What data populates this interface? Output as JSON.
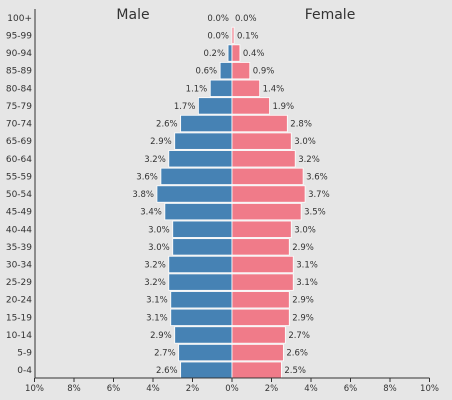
{
  "chart_data": {
    "type": "bar",
    "orientation": "horizontal-butterfly",
    "male_title": "Male",
    "female_title": "Female",
    "categories": [
      "100+",
      "95-99",
      "90-94",
      "85-89",
      "80-84",
      "75-79",
      "70-74",
      "65-69",
      "60-64",
      "55-59",
      "50-54",
      "45-49",
      "40-44",
      "35-39",
      "30-34",
      "25-29",
      "20-24",
      "15-19",
      "10-14",
      "5-9",
      "0-4"
    ],
    "series": [
      {
        "name": "Male",
        "color": "#4682b4",
        "values": [
          0.0,
          0.0,
          0.2,
          0.6,
          1.1,
          1.7,
          2.6,
          2.9,
          3.2,
          3.6,
          3.8,
          3.4,
          3.0,
          3.0,
          3.2,
          3.2,
          3.1,
          3.1,
          2.9,
          2.7,
          2.6
        ],
        "labels": [
          "0.0%",
          "0.0%",
          "0.2%",
          "0.6%",
          "1.1%",
          "1.7%",
          "2.6%",
          "2.9%",
          "3.2%",
          "3.6%",
          "3.8%",
          "3.4%",
          "3.0%",
          "3.0%",
          "3.2%",
          "3.2%",
          "3.1%",
          "3.1%",
          "2.9%",
          "2.7%",
          "2.6%"
        ]
      },
      {
        "name": "Female",
        "color": "#f07b89",
        "values": [
          0.0,
          0.1,
          0.4,
          0.9,
          1.4,
          1.9,
          2.8,
          3.0,
          3.2,
          3.6,
          3.7,
          3.5,
          3.0,
          2.9,
          3.1,
          3.1,
          2.9,
          2.9,
          2.7,
          2.6,
          2.5
        ],
        "labels": [
          "0.0%",
          "0.1%",
          "0.4%",
          "0.9%",
          "1.4%",
          "1.9%",
          "2.8%",
          "3.0%",
          "3.2%",
          "3.6%",
          "3.7%",
          "3.5%",
          "3.0%",
          "2.9%",
          "3.1%",
          "3.1%",
          "2.9%",
          "2.9%",
          "2.7%",
          "2.6%",
          "2.5%"
        ]
      }
    ],
    "xlim": [
      -10,
      10
    ],
    "x_ticks": [
      -10,
      -8,
      -6,
      -4,
      -2,
      0,
      2,
      4,
      6,
      8,
      10
    ],
    "x_tick_labels": [
      "10%",
      "8%",
      "6%",
      "4%",
      "2%",
      "0%",
      "2%",
      "4%",
      "6%",
      "8%",
      "10%"
    ],
    "grid": false
  }
}
